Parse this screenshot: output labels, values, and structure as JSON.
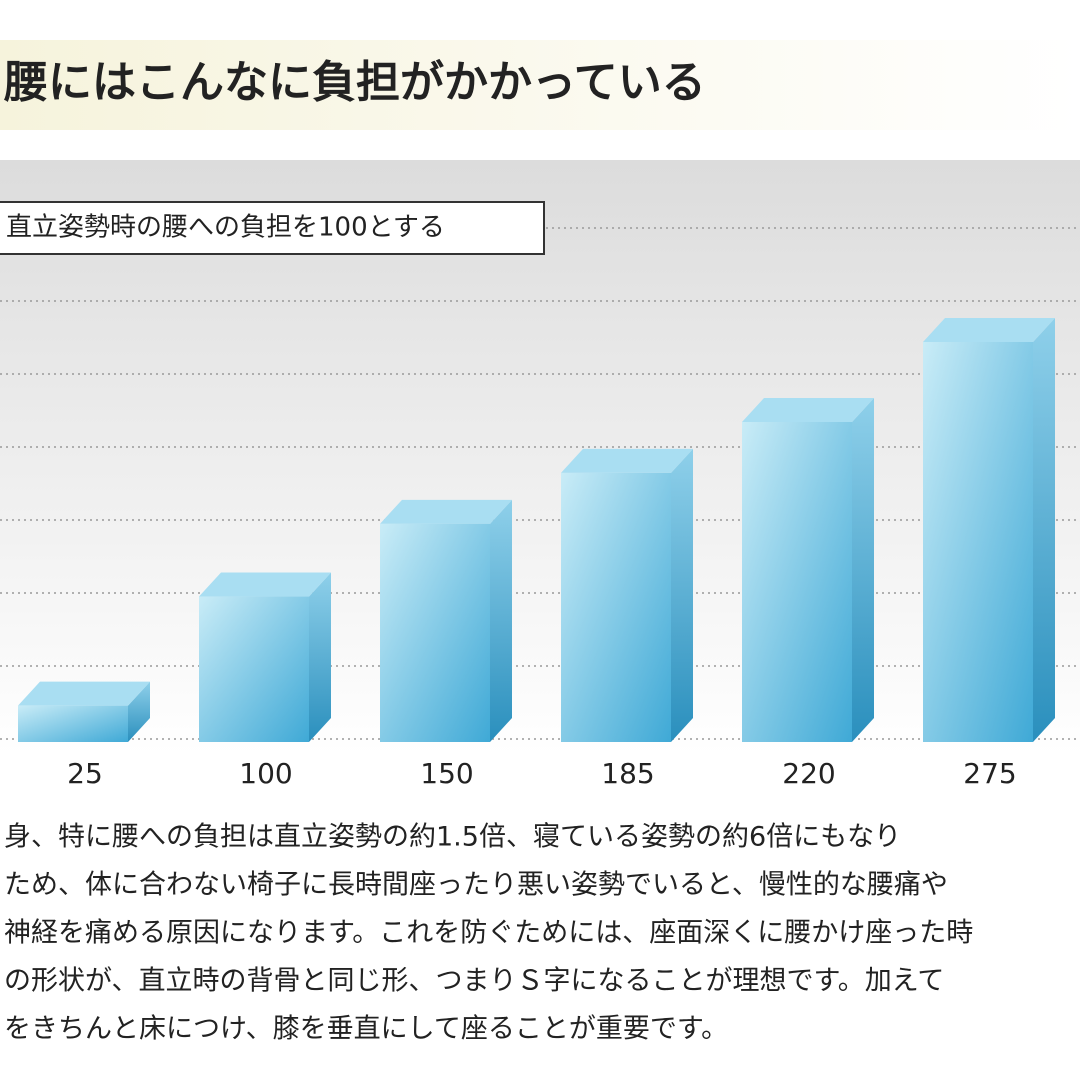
{
  "chart_data": {
    "type": "bar3d",
    "title": "腰にはこんなに負担がかかっている",
    "note": "直立姿勢時の腰への負担を100とする",
    "values": [
      25,
      100,
      150,
      185,
      220,
      275
    ],
    "color": "#4fb3dc",
    "grid": true,
    "text": [
      "身、特に腰への負担は直立姿勢の約1.5倍、寝ている姿勢の約6倍にもなり",
      "ため、体に合わない椅子に長時間座ったり悪い姿勢でいると、慢性的な腰痛や",
      "神経を痛める原因になります。これを防ぐためには、座面深くに腰かけ座った時",
      "の形状が、直立時の背骨と同じ形、つまりＳ字になることが理想です。加えて",
      "をきちんと床につけ、膝を垂直にして座ることが重要です。"
    ]
  }
}
